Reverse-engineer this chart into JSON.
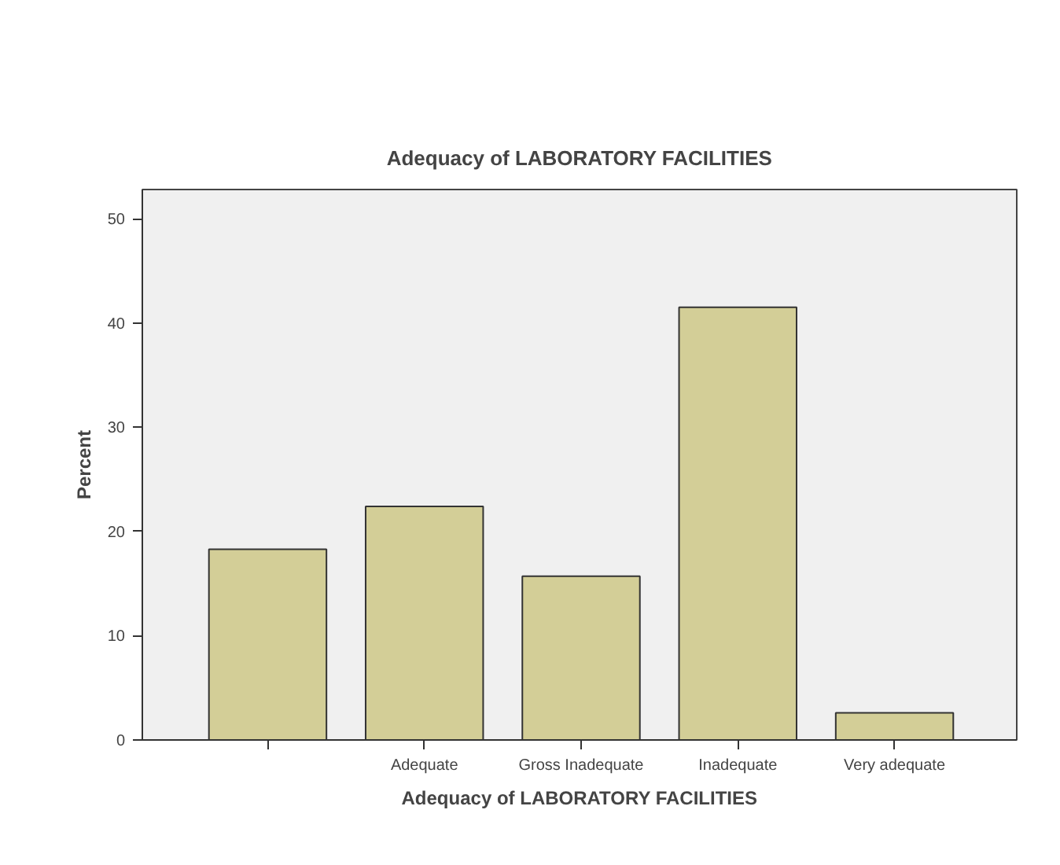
{
  "chart_data": {
    "type": "bar",
    "title": "Adequacy of LABORATORY FACILITIES",
    "xlabel": "Adequacy of LABORATORY FACILITIES",
    "ylabel": "Percent",
    "categories": [
      null,
      "Adequate",
      "Gross Inadequate",
      "Inadequate",
      "Very adequate"
    ],
    "values": [
      18.3,
      22.4,
      15.7,
      41.5,
      2.6
    ],
    "color": "#d3ce97",
    "ylim": [
      0,
      52.8
    ],
    "yticks": [
      0,
      10,
      20,
      30,
      40,
      50
    ],
    "grid": false
  }
}
